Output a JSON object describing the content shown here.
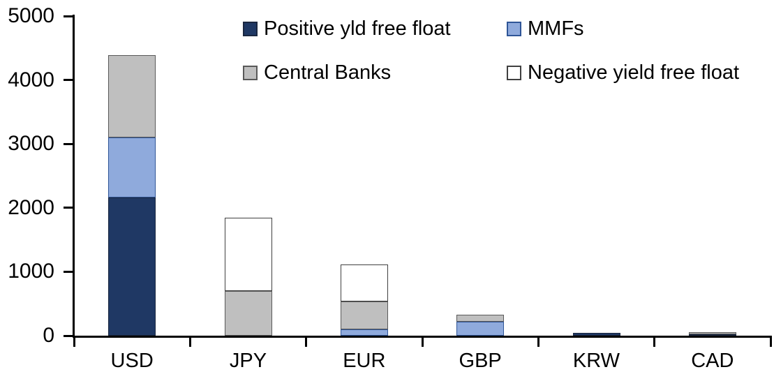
{
  "chart_data": {
    "type": "bar",
    "stacked": true,
    "title": "",
    "xlabel": "",
    "ylabel": "",
    "categories": [
      "USD",
      "JPY",
      "EUR",
      "GBP",
      "KRW",
      "CAD"
    ],
    "series": [
      {
        "name": "Positive yld free float",
        "color": "#1F3864",
        "border_color": "#1A2740",
        "values": [
          2160,
          0,
          0,
          0,
          40,
          20
        ]
      },
      {
        "name": "MMFs",
        "color": "#8FAADC",
        "border_color": "#2F5597",
        "values": [
          940,
          0,
          100,
          220,
          0,
          0
        ]
      },
      {
        "name": "Central Banks",
        "color": "#BFBFBF",
        "border_color": "#595959",
        "values": [
          1290,
          700,
          435,
          110,
          0,
          35
        ]
      },
      {
        "name": "Negative yield free float",
        "color": "#FFFFFF",
        "border_color": "#404040",
        "values": [
          0,
          1140,
          575,
          0,
          0,
          0
        ]
      }
    ],
    "totals_by_category": [
      4390,
      1840,
      1110,
      330,
      40,
      55
    ],
    "ylim": [
      0,
      5000
    ],
    "yticks": [
      0,
      1000,
      2000,
      3000,
      4000,
      5000
    ],
    "legend_position": "top",
    "legend_layout": "2x2",
    "grid": false,
    "axis_color": "#000000"
  }
}
